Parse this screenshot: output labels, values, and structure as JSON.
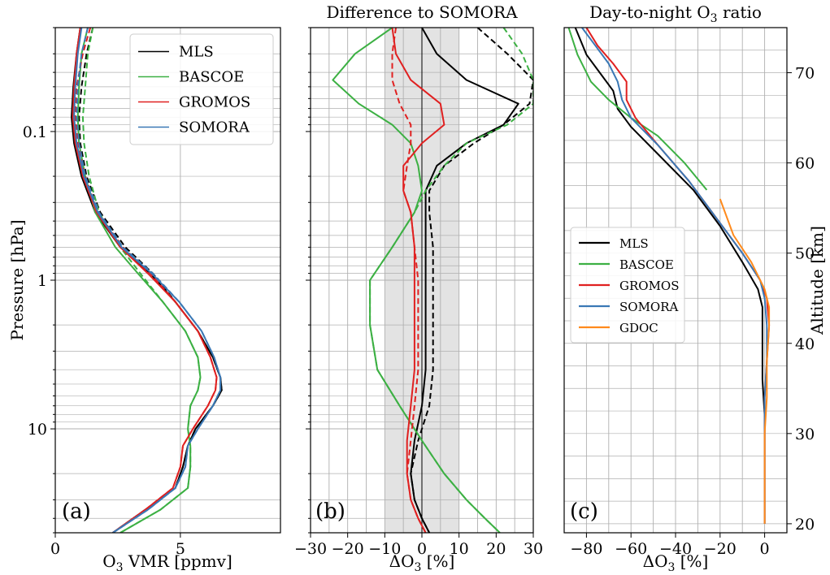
{
  "chart_data": [
    {
      "type": "line",
      "panel_label": "(a)",
      "title": "",
      "xlabel": "O3 VMR [ppmv]",
      "ylabel": "Pressure [hPa]",
      "xlim": [
        0,
        9
      ],
      "ylim": [
        50,
        0.02
      ],
      "yscale": "log",
      "xticks": [
        0,
        5
      ],
      "xtick_labels": [
        "0",
        "5"
      ],
      "yticks": [
        0.1,
        1,
        10
      ],
      "ytick_labels": [
        "0.1",
        "1",
        "10"
      ],
      "grid": true,
      "legend": "top-right",
      "series": [
        {
          "name": "MLS",
          "color": "#000000",
          "dash": false,
          "x": [
            1.0,
            0.85,
            0.72,
            0.65,
            0.75,
            1.05,
            1.6,
            2.6,
            3.8,
            4.8,
            5.7,
            6.3,
            6.6,
            6.65,
            6.3,
            5.6,
            5.3,
            5.1,
            4.8,
            3.6,
            2.3
          ],
          "y": [
            0.02,
            0.03,
            0.05,
            0.08,
            0.12,
            0.2,
            0.35,
            0.6,
            0.9,
            1.4,
            2.2,
            3.3,
            4.5,
            5.5,
            7.0,
            10,
            13,
            18,
            25,
            35,
            50
          ]
        },
        {
          "name": "",
          "color": "#000000",
          "dash": true,
          "x": [
            1.5,
            1.25,
            1.05,
            0.95,
            1.0,
            1.25,
            1.8,
            2.8,
            3.9,
            4.8,
            5.7,
            6.3,
            6.6,
            6.65,
            6.3,
            5.6,
            5.3,
            5.1,
            4.8,
            3.6,
            2.3
          ],
          "y": [
            0.02,
            0.03,
            0.05,
            0.08,
            0.12,
            0.2,
            0.35,
            0.6,
            0.9,
            1.4,
            2.2,
            3.3,
            4.5,
            5.5,
            7.0,
            10,
            13,
            18,
            25,
            35,
            50
          ]
        },
        {
          "name": "BASCOE",
          "color": "#3cb043",
          "dash": false,
          "x": [
            1.3,
            1.05,
            0.95,
            0.9,
            0.95,
            1.2,
            1.6,
            2.4,
            3.3,
            4.3,
            5.2,
            5.7,
            5.8,
            5.7,
            5.4,
            5.3,
            5.4,
            5.4,
            5.3,
            4.2,
            2.6
          ],
          "y": [
            0.02,
            0.03,
            0.05,
            0.08,
            0.12,
            0.2,
            0.35,
            0.6,
            0.9,
            1.4,
            2.2,
            3.3,
            4.5,
            5.5,
            7.0,
            10,
            13,
            18,
            25,
            35,
            50
          ]
        },
        {
          "name": "",
          "color": "#3cb043",
          "dash": true,
          "x": [
            1.5,
            1.3,
            1.2,
            1.1,
            1.15,
            1.35,
            1.75,
            2.6,
            3.4,
            4.3,
            5.2,
            5.7,
            5.8,
            5.7,
            5.4,
            5.3,
            5.4,
            5.4,
            5.3,
            4.2,
            2.6
          ],
          "y": [
            0.02,
            0.03,
            0.05,
            0.08,
            0.12,
            0.2,
            0.35,
            0.6,
            0.9,
            1.4,
            2.2,
            3.3,
            4.5,
            5.5,
            7.0,
            10,
            13,
            18,
            25,
            35,
            50
          ]
        },
        {
          "name": "GROMOS",
          "color": "#e02020",
          "dash": false,
          "x": [
            1.0,
            0.85,
            0.75,
            0.7,
            0.8,
            1.1,
            1.65,
            2.6,
            3.7,
            4.8,
            5.7,
            6.2,
            6.45,
            6.4,
            6.1,
            5.5,
            5.1,
            5.0,
            4.7,
            3.6,
            2.3
          ],
          "y": [
            0.02,
            0.03,
            0.05,
            0.08,
            0.12,
            0.2,
            0.35,
            0.6,
            0.9,
            1.4,
            2.2,
            3.3,
            4.5,
            5.5,
            7.0,
            10,
            13,
            18,
            25,
            35,
            50
          ]
        },
        {
          "name": "",
          "color": "#e02020",
          "dash": true,
          "x": [
            1.4,
            1.1,
            0.85,
            0.8,
            0.9,
            1.2,
            1.7,
            2.7,
            3.8,
            4.8,
            5.7,
            6.2,
            6.45,
            6.4,
            6.1,
            5.5,
            5.1,
            5.0,
            4.7,
            3.6,
            2.3
          ],
          "y": [
            0.02,
            0.03,
            0.05,
            0.08,
            0.12,
            0.2,
            0.35,
            0.6,
            0.9,
            1.4,
            2.2,
            3.3,
            4.5,
            5.5,
            7.0,
            10,
            13,
            18,
            25,
            35,
            50
          ]
        },
        {
          "name": "SOMORA",
          "color": "#3a78b5",
          "dash": false,
          "x": [
            1.05,
            0.9,
            0.8,
            0.75,
            0.85,
            1.15,
            1.7,
            2.65,
            3.85,
            4.95,
            5.85,
            6.35,
            6.6,
            6.6,
            6.3,
            5.7,
            5.3,
            5.2,
            4.8,
            3.7,
            2.3
          ],
          "y": [
            0.02,
            0.03,
            0.05,
            0.08,
            0.12,
            0.2,
            0.35,
            0.6,
            0.9,
            1.4,
            2.2,
            3.3,
            4.5,
            5.5,
            7.0,
            10,
            13,
            18,
            25,
            35,
            50
          ]
        },
        {
          "name": "",
          "color": "#3a78b5",
          "dash": true,
          "x": [
            1.3,
            1.05,
            0.9,
            0.85,
            0.95,
            1.2,
            1.75,
            2.7,
            3.9,
            4.95,
            5.85,
            6.35,
            6.6,
            6.6,
            6.3,
            5.7,
            5.3,
            5.2,
            4.8,
            3.7,
            2.3
          ],
          "y": [
            0.02,
            0.03,
            0.05,
            0.08,
            0.12,
            0.2,
            0.35,
            0.6,
            0.9,
            1.4,
            2.2,
            3.3,
            4.5,
            5.5,
            7.0,
            10,
            13,
            18,
            25,
            35,
            50
          ]
        }
      ]
    },
    {
      "type": "line",
      "panel_label": "(b)",
      "title": "Difference to SOMORA",
      "xlabel": "ΔO3 [%]",
      "ylabel": "",
      "xlim": [
        -30,
        30
      ],
      "ylim": [
        50,
        0.02
      ],
      "yscale": "log",
      "xticks": [
        -30,
        -20,
        -10,
        0,
        10,
        20,
        30
      ],
      "xtick_labels": [
        "−30",
        "−20",
        "−10",
        "0",
        "10",
        "20",
        "30"
      ],
      "shaded_band": [
        -10,
        10
      ],
      "vline": 0,
      "grid": true,
      "series": [
        {
          "name": "MLS",
          "color": "#000000",
          "dash": false,
          "x": [
            0,
            4,
            12,
            26,
            22,
            12,
            4,
            1,
            1,
            1,
            1,
            1,
            1,
            0,
            -2,
            -3,
            -2,
            0,
            2
          ],
          "y": [
            0.02,
            0.03,
            0.045,
            0.065,
            0.09,
            0.12,
            0.17,
            0.25,
            0.35,
            0.6,
            1,
            2,
            4,
            7,
            12,
            20,
            30,
            40,
            50
          ]
        },
        {
          "name": "",
          "color": "#000000",
          "dash": true,
          "x": [
            15,
            23,
            30,
            29,
            22,
            14,
            6,
            2,
            2,
            3,
            3,
            3,
            3,
            2,
            -1,
            -3,
            -2,
            0,
            2
          ],
          "y": [
            0.02,
            0.03,
            0.045,
            0.065,
            0.09,
            0.12,
            0.17,
            0.25,
            0.35,
            0.6,
            1,
            2,
            4,
            7,
            12,
            20,
            30,
            40,
            50
          ]
        },
        {
          "name": "BASCOE",
          "color": "#3cb043",
          "dash": false,
          "x": [
            -8,
            -18,
            -24,
            -17,
            -8,
            -3,
            -1,
            0,
            -2,
            -8,
            -14,
            -14,
            -12,
            -6,
            0,
            6,
            12,
            17,
            21
          ],
          "y": [
            0.02,
            0.03,
            0.045,
            0.065,
            0.09,
            0.12,
            0.17,
            0.25,
            0.35,
            0.6,
            1,
            2,
            4,
            7,
            12,
            20,
            30,
            40,
            50
          ]
        },
        {
          "name": "",
          "color": "#3cb043",
          "dash": true,
          "x": [
            22,
            27,
            30,
            30,
            23,
            12,
            6,
            1,
            -2,
            -8,
            -14,
            -14,
            -12,
            -6,
            0,
            6,
            12,
            17,
            21
          ],
          "y": [
            0.02,
            0.03,
            0.045,
            0.065,
            0.09,
            0.12,
            0.17,
            0.25,
            0.35,
            0.6,
            1,
            2,
            4,
            7,
            12,
            20,
            30,
            40,
            50
          ]
        },
        {
          "name": "GROMOS",
          "color": "#e02020",
          "dash": false,
          "x": [
            -8,
            -7,
            -3,
            5,
            6,
            0,
            -5,
            -5,
            -3,
            -2,
            -2,
            -2,
            -2,
            -3,
            -4,
            -4,
            -3,
            -1,
            1
          ],
          "y": [
            0.02,
            0.03,
            0.045,
            0.065,
            0.09,
            0.12,
            0.17,
            0.25,
            0.35,
            0.6,
            1,
            2,
            4,
            7,
            12,
            20,
            30,
            40,
            50
          ]
        },
        {
          "name": "",
          "color": "#e02020",
          "dash": true,
          "x": [
            -7,
            -8,
            -8,
            -6,
            -3,
            -3,
            -4,
            -5,
            -3,
            -2,
            -1,
            -1,
            -1,
            -2,
            -3,
            -4,
            -3,
            -1,
            1
          ],
          "y": [
            0.02,
            0.03,
            0.045,
            0.065,
            0.09,
            0.12,
            0.17,
            0.25,
            0.35,
            0.6,
            1,
            2,
            4,
            7,
            12,
            20,
            30,
            40,
            50
          ]
        }
      ]
    },
    {
      "type": "line",
      "panel_label": "(c)",
      "title": "Day-to-night O3 ratio",
      "xlabel": "ΔO3 [%]",
      "ylabel": "Altitude [km]",
      "xlim": [
        -90,
        10
      ],
      "ylim": [
        19,
        75
      ],
      "xticks": [
        -80,
        -60,
        -40,
        -20,
        0
      ],
      "xtick_labels": [
        "−80",
        "−60",
        "−40",
        "−20",
        "0"
      ],
      "yticks": [
        20,
        30,
        40,
        50,
        60,
        70
      ],
      "ytick_labels": [
        "20",
        "30",
        "40",
        "50",
        "60",
        "70"
      ],
      "grid": true,
      "legend": "center-left",
      "series": [
        {
          "name": "MLS",
          "color": "#000000",
          "x": [
            -85,
            -80,
            -74,
            -68,
            -66,
            -60,
            -48,
            -32,
            -20,
            -10,
            -3,
            -1,
            -1,
            -1,
            0,
            0,
            0,
            0
          ],
          "y": [
            75,
            72,
            70,
            68,
            66,
            64,
            61,
            57,
            53,
            49,
            46,
            44,
            40,
            36,
            32,
            28,
            24,
            20
          ]
        },
        {
          "name": "BASCOE",
          "color": "#3cb043",
          "x": [
            -88,
            -84,
            -78,
            -70,
            -60,
            -48,
            -36,
            -26
          ],
          "y": [
            75,
            72,
            69,
            67,
            65,
            63,
            60,
            57
          ]
        },
        {
          "name": "GROMOS",
          "color": "#e02020",
          "x": [
            -80,
            -75,
            -68,
            -62,
            -62,
            -58,
            -48,
            -34,
            -22,
            -10,
            -2,
            1,
            2,
            1,
            0,
            0,
            0,
            0
          ],
          "y": [
            75,
            73,
            71,
            69,
            67,
            65,
            62,
            58,
            54,
            50,
            47,
            45,
            42,
            38,
            34,
            30,
            25,
            20
          ]
        },
        {
          "name": "SOMORA",
          "color": "#3a78b5",
          "x": [
            -82,
            -76,
            -70,
            -66,
            -64,
            -60,
            -48,
            -34,
            -22,
            -10,
            -2,
            0,
            1,
            1,
            0,
            0,
            0,
            0
          ],
          "y": [
            75,
            73,
            71,
            69,
            67,
            65,
            62,
            58,
            54,
            50,
            47,
            45,
            42,
            38,
            34,
            30,
            25,
            20
          ]
        },
        {
          "name": "GDOC",
          "color": "#ff8a1c",
          "x": [
            -20,
            -14,
            -6,
            0,
            2,
            2,
            1,
            1,
            0,
            0,
            0
          ],
          "y": [
            56,
            52,
            49,
            46,
            44,
            42,
            38,
            34,
            30,
            25,
            20
          ]
        }
      ]
    }
  ]
}
